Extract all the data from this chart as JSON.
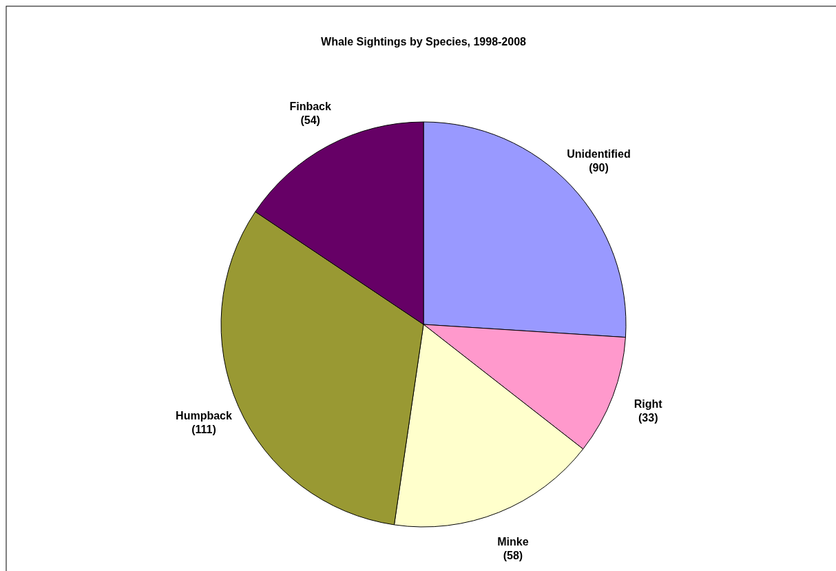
{
  "chart_data": {
    "type": "pie",
    "title": "Whale Sightings by Species, 1998-2008",
    "categories": [
      "Unidentified",
      "Right",
      "Minke",
      "Humpback",
      "Finback"
    ],
    "values": [
      90,
      33,
      58,
      111,
      54
    ],
    "value_labels": [
      "(90)",
      "(33)",
      "(58)",
      "(111)",
      "(54)"
    ],
    "colors": [
      "#9999ff",
      "#ff99cc",
      "#ffffcc",
      "#999933",
      "#660066"
    ]
  }
}
